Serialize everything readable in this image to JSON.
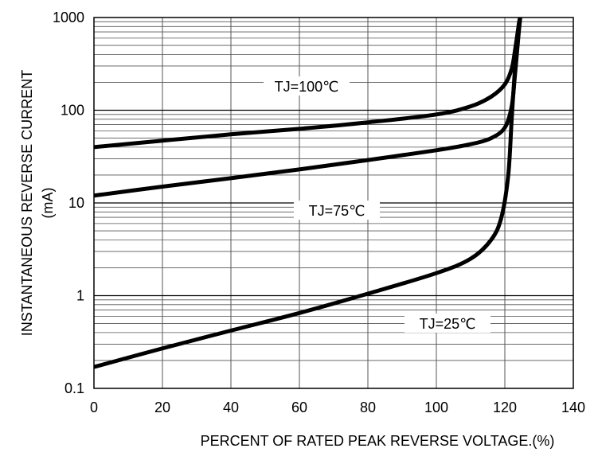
{
  "chart_data": {
    "type": "line",
    "xlabel": "PERCENT OF RATED PEAK REVERSE VOLTAGE.(%)",
    "ylabel": "INSTANTANEOUS REVERSE CURRENT",
    "ylabel_unit": "(mA)",
    "xlim": [
      0,
      140
    ],
    "ylim": [
      0.1,
      1000
    ],
    "yscale": "log",
    "grid": true,
    "x_ticks": [
      0,
      20,
      40,
      60,
      80,
      100,
      120,
      140
    ],
    "x_tick_labels": [
      "0",
      "20",
      "40",
      "60",
      "80",
      "100",
      "120",
      "140"
    ],
    "y_ticks": [
      0.1,
      1,
      10,
      100,
      1000
    ],
    "y_tick_labels": [
      "0.1",
      "1",
      "10",
      "100",
      "1000"
    ],
    "series": [
      {
        "name": "TJ=100℃",
        "x": [
          0,
          20,
          40,
          60,
          80,
          100,
          110,
          116,
          120,
          122,
          123,
          124,
          124.5
        ],
        "y": [
          40,
          47,
          55,
          63,
          74,
          90,
          110,
          140,
          190,
          280,
          450,
          800,
          1000
        ]
      },
      {
        "name": "TJ=75℃",
        "x": [
          0,
          20,
          40,
          60,
          80,
          100,
          110,
          116,
          120,
          122,
          123,
          124,
          124.5
        ],
        "y": [
          12,
          15,
          18.5,
          23,
          29,
          37,
          43,
          50,
          65,
          110,
          250,
          650,
          1000
        ]
      },
      {
        "name": "TJ=25℃",
        "x": [
          0,
          20,
          40,
          60,
          80,
          100,
          110,
          116,
          119,
          121,
          122,
          123,
          124,
          124.5
        ],
        "y": [
          0.17,
          0.27,
          0.42,
          0.65,
          1.05,
          1.75,
          2.5,
          4,
          7,
          20,
          80,
          300,
          800,
          1000
        ]
      }
    ]
  },
  "colors": {
    "curve": "#000000",
    "grid": "#555555",
    "frame": "#000000",
    "background": "#ffffff"
  }
}
